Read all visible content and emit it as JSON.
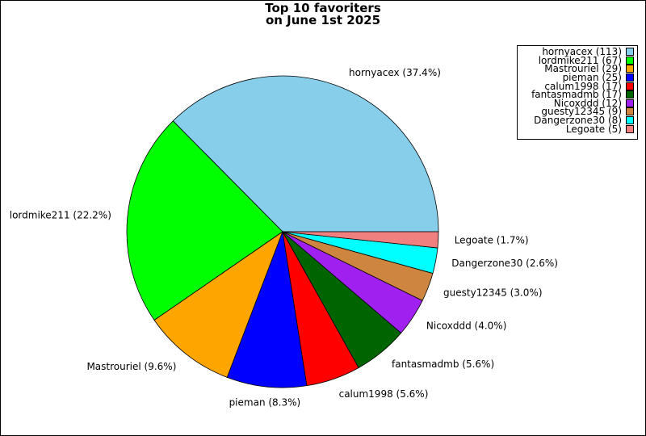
{
  "chart_data": {
    "type": "pie",
    "title_lines": [
      "Top 10 favoriters",
      "on June 1st 2025"
    ],
    "slices": [
      {
        "label": "hornyacex",
        "value": 113,
        "pct_label": "hornyacex (37.4%)",
        "legend_label": "hornyacex (113)",
        "color": "#87CEEB"
      },
      {
        "label": "lordmike211",
        "value": 67,
        "pct_label": "lordmike211 (22.2%)",
        "legend_label": "lordmike211 (67)",
        "color": "#00FF00"
      },
      {
        "label": "Mastrouriel",
        "value": 29,
        "pct_label": "Mastrouriel (9.6%)",
        "legend_label": "Mastrouriel (29)",
        "color": "#FFA500"
      },
      {
        "label": "pieman",
        "value": 25,
        "pct_label": "pieman (8.3%)",
        "legend_label": "pieman (25)",
        "color": "#0000FF"
      },
      {
        "label": "calum1998",
        "value": 17,
        "pct_label": "calum1998 (5.6%)",
        "legend_label": "calum1998 (17)",
        "color": "#FF0000"
      },
      {
        "label": "fantasmadmb",
        "value": 17,
        "pct_label": "fantasmadmb (5.6%)",
        "legend_label": "fantasmadmb (17)",
        "color": "#006400"
      },
      {
        "label": "Nicoxddd",
        "value": 12,
        "pct_label": "Nicoxddd (4.0%)",
        "legend_label": "Nicoxddd (12)",
        "color": "#A020F0"
      },
      {
        "label": "guesty12345",
        "value": 9,
        "pct_label": "guesty12345 (3.0%)",
        "legend_label": "guesty12345 (9)",
        "color": "#CD853F"
      },
      {
        "label": "Dangerzone30",
        "value": 8,
        "pct_label": "Dangerzone30 (2.6%)",
        "legend_label": "Dangerzone30 (8)",
        "color": "#00FFFF"
      },
      {
        "label": "Legoate",
        "value": 5,
        "pct_label": "Legoate (1.7%)",
        "legend_label": "Legoate (5)",
        "color": "#F08080"
      }
    ],
    "legend_position": "top-right",
    "start_angle_deg": 0,
    "direction": "counterclockwise"
  }
}
